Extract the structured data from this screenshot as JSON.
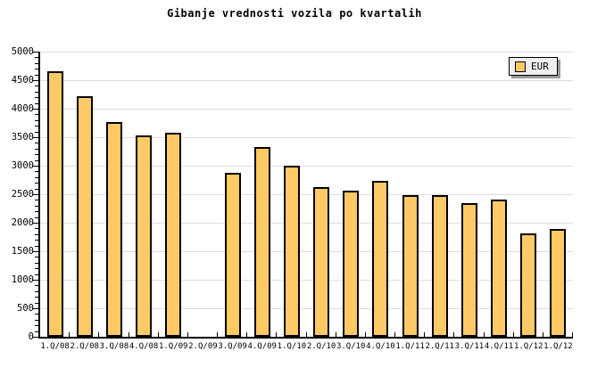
{
  "title": "Gibanje vrednosti vozila po kvartalih",
  "legend": {
    "label": "EUR"
  },
  "colors": {
    "background": "#FFFFFF",
    "bar_fill": "#FFC966",
    "bar_border": "#000000",
    "gridline": "#DCDCDC",
    "axis": "#000000",
    "legend_bg": "#EFEFEF",
    "legend_border": "#000000",
    "legend_shadow": "#999999",
    "text": "#000000"
  },
  "y_axis": {
    "tick_labels": [
      "0",
      "500",
      "1000",
      "1500",
      "2000",
      "2500",
      "3000",
      "3500",
      "4000",
      "4500",
      "5000"
    ]
  },
  "chart_data": {
    "type": "bar",
    "title": "Gibanje vrednosti vozila po kvartalih",
    "xlabel": "",
    "ylabel": "",
    "ylim": [
      0,
      5000
    ],
    "ytick_major": 500,
    "ytick_minor": 100,
    "grid": true,
    "legend_position": "top-right",
    "categories": [
      "1.Q/08",
      "2.Q/08",
      "3.Q/08",
      "4.Q/08",
      "1.Q/09",
      "2.Q/09",
      "3.Q/09",
      "4.Q/09",
      "1.Q/10",
      "2.Q/10",
      "3.Q/10",
      "4.Q/10",
      "1.Q/11",
      "2.Q/11",
      "3.Q/11",
      "4.Q/11",
      "1.Q/12",
      "1.Q/12"
    ],
    "series": [
      {
        "name": "EUR",
        "values": [
          4660,
          4220,
          3770,
          3530,
          3580,
          0,
          2880,
          3330,
          3000,
          2630,
          2560,
          2740,
          2480,
          2480,
          2350,
          2410,
          1820,
          1890
        ]
      }
    ]
  }
}
